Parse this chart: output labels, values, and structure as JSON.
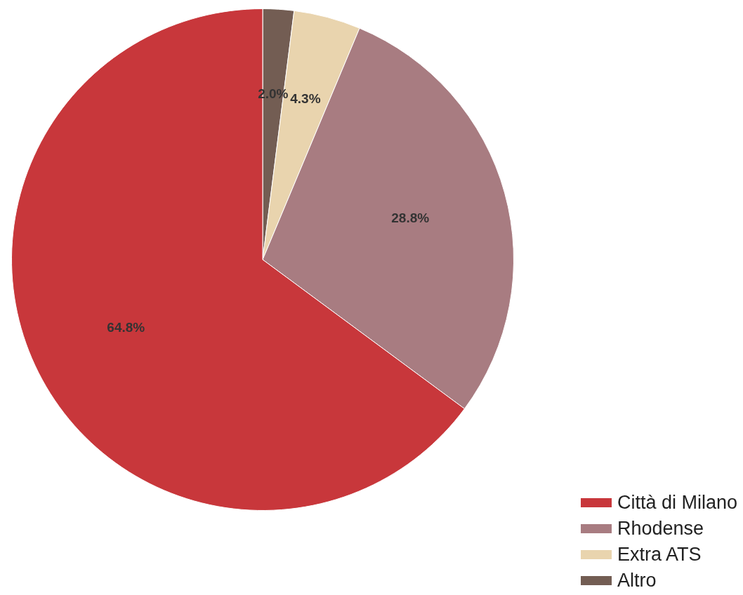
{
  "chart_data": {
    "type": "pie",
    "categories": [
      "Città di Milano",
      "Rhodense",
      "Extra ATS",
      "Altro"
    ],
    "values": [
      64.8,
      28.8,
      4.3,
      2.0
    ],
    "value_labels": [
      "64.8%",
      "28.8%",
      "4.3%",
      "2.0%"
    ],
    "colors": [
      "#c8373b",
      "#a87c81",
      "#e9d4ae",
      "#735d53"
    ],
    "legend": "bottom right"
  }
}
